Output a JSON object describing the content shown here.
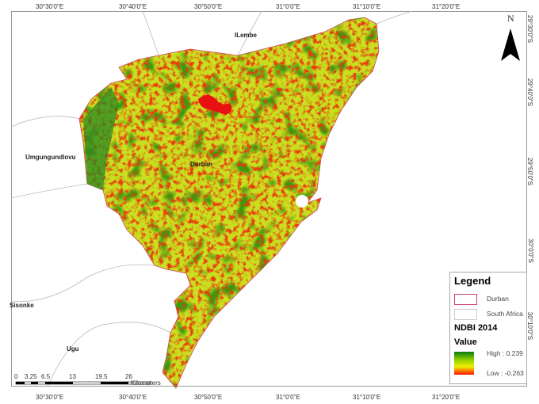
{
  "map": {
    "lat_labels": [
      "29°30'0\"S",
      "29°40'0\"S",
      "29°50'0\"S",
      "30°0'0\"S",
      "30°10'0\"S"
    ],
    "lon_labels": [
      "30°30'0\"E",
      "30°40'0\"E",
      "30°50'0\"E",
      "31°0'0\"E",
      "31°10'0\"E",
      "31°20'0\"E"
    ],
    "places": {
      "ilembe": "ILembe",
      "umgungundlovu": "Umgungundlovu",
      "durban": "Durban",
      "sisonke": "Sisonke",
      "ugu": "Ugu"
    },
    "north": "N"
  },
  "legend": {
    "title": "Legend",
    "items": [
      {
        "label": "Durban",
        "color": "#d04070"
      },
      {
        "label": "South Africa",
        "color": "#cccccc"
      }
    ],
    "layer": "NDBI 2014",
    "value": "Value",
    "high": "High : 0.239",
    "low": "Low : -0.263",
    "ramp": [
      "#0a7a10",
      "#8fd000",
      "#f0f000",
      "#ff1000"
    ]
  },
  "scalebar": {
    "ticks": [
      "0",
      "3.25",
      "6.5",
      "13",
      "19.5",
      "26"
    ],
    "unit": "Kilometers"
  }
}
